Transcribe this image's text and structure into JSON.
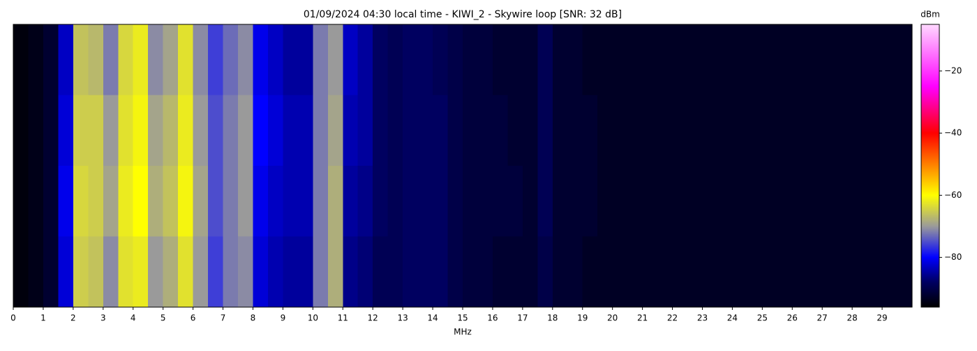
{
  "chart_data": {
    "type": "heatmap",
    "title": "01/09/2024 04:30 local time - KIWI_2 - Skywire loop [SNR: 32 dB]",
    "x_label": "MHz",
    "colorbar_label": "dBm",
    "xlim": [
      0,
      30
    ],
    "xticks": [
      0,
      1,
      2,
      3,
      4,
      5,
      6,
      7,
      8,
      9,
      10,
      11,
      12,
      13,
      14,
      15,
      16,
      17,
      18,
      19,
      20,
      21,
      22,
      23,
      24,
      25,
      26,
      27,
      28,
      29
    ],
    "xbins": [
      0,
      0.5,
      1,
      1.5,
      2,
      2.5,
      3,
      3.5,
      4,
      4.5,
      5,
      5.5,
      6,
      6.5,
      7,
      7.5,
      8,
      8.5,
      9,
      9.5,
      10,
      10.5,
      11,
      11.5,
      12,
      12.5,
      13,
      13.5,
      14,
      14.5,
      15,
      15.5,
      16,
      16.5,
      17,
      17.5,
      18,
      18.5,
      19,
      19.5,
      20,
      20.5,
      21,
      21.5,
      22,
      22.5,
      23,
      23.5,
      24,
      24.5,
      25,
      25.5,
      26,
      26.5,
      27,
      27.5,
      28,
      28.5,
      29,
      29.5,
      30
    ],
    "z": [
      [
        -95,
        -94,
        -92,
        -83,
        -66,
        -67,
        -72,
        -64,
        -62,
        -71,
        -69,
        -63,
        -71,
        -76,
        -73,
        -71,
        -81,
        -83,
        -85,
        -85,
        -72,
        -70,
        -83,
        -85,
        -88,
        -89,
        -88,
        -88,
        -89,
        -90,
        -91,
        -91,
        -92,
        -92,
        -92,
        -89,
        -92,
        -92,
        -93,
        -93,
        -93,
        -93,
        -93,
        -93,
        -93,
        -93,
        -93,
        -93,
        -93,
        -93,
        -93,
        -93,
        -93,
        -93,
        -93,
        -93,
        -93,
        -93,
        -93,
        -93
      ],
      [
        -95,
        -94,
        -92,
        -82,
        -65,
        -65,
        -70,
        -63,
        -61,
        -69,
        -67,
        -62,
        -70,
        -75,
        -72,
        -70,
        -80,
        -82,
        -84,
        -84,
        -72,
        -69,
        -84,
        -85,
        -88,
        -89,
        -88,
        -88,
        -88,
        -90,
        -91,
        -91,
        -91,
        -92,
        -92,
        -89,
        -92,
        -92,
        -92,
        -93,
        -93,
        -93,
        -93,
        -93,
        -93,
        -93,
        -93,
        -93,
        -93,
        -93,
        -93,
        -93,
        -93,
        -93,
        -93,
        -93,
        -93,
        -93,
        -93,
        -93
      ],
      [
        -95,
        -94,
        -92,
        -81,
        -64,
        -65,
        -69,
        -62,
        -60,
        -68,
        -66,
        -61,
        -69,
        -75,
        -72,
        -70,
        -81,
        -83,
        -84,
        -84,
        -72,
        -68,
        -85,
        -86,
        -88,
        -89,
        -88,
        -88,
        -88,
        -90,
        -91,
        -91,
        -91,
        -91,
        -92,
        -89,
        -92,
        -92,
        -92,
        -93,
        -93,
        -93,
        -93,
        -93,
        -93,
        -93,
        -93,
        -93,
        -93,
        -93,
        -93,
        -93,
        -93,
        -93,
        -93,
        -93,
        -93,
        -93,
        -93,
        -93
      ],
      [
        -95,
        -94,
        -92,
        -82,
        -65,
        -66,
        -71,
        -63,
        -62,
        -70,
        -68,
        -63,
        -70,
        -76,
        -72,
        -71,
        -82,
        -84,
        -85,
        -85,
        -72,
        -68,
        -86,
        -87,
        -89,
        -89,
        -88,
        -88,
        -88,
        -90,
        -91,
        -91,
        -92,
        -92,
        -92,
        -90,
        -92,
        -92,
        -93,
        -93,
        -93,
        -93,
        -93,
        -93,
        -93,
        -93,
        -93,
        -93,
        -93,
        -93,
        -93,
        -93,
        -93,
        -93,
        -93,
        -93,
        -93,
        -93,
        -93,
        -93
      ]
    ],
    "clim": [
      -96,
      -5
    ],
    "colorbar_ticks": [
      {
        "value": -20,
        "label": "−20"
      },
      {
        "value": -40,
        "label": "−40"
      },
      {
        "value": -60,
        "label": "−60"
      },
      {
        "value": -80,
        "label": "−80"
      }
    ],
    "colormap": [
      [
        -96,
        "#000000"
      ],
      [
        -88,
        "#000060"
      ],
      [
        -80,
        "#0000ff"
      ],
      [
        -70,
        "#9a9a9a"
      ],
      [
        -60,
        "#ffff00"
      ],
      [
        -40,
        "#ff0000"
      ],
      [
        -25,
        "#ff00ff"
      ],
      [
        -5,
        "#ffd8ff"
      ]
    ]
  }
}
